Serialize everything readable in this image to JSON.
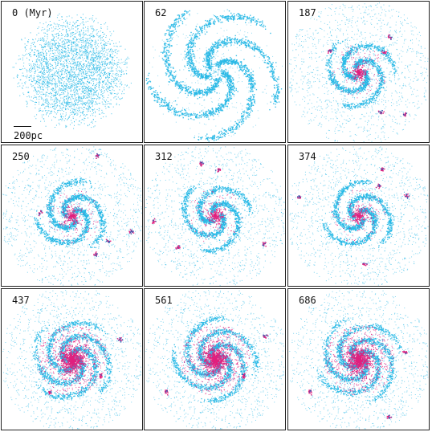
{
  "figure": {
    "panels": [
      {
        "label": "0 (Myr)",
        "stage": "smooth"
      },
      {
        "label": "62",
        "stage": "spiral-clumpy"
      },
      {
        "label": "187",
        "stage": "spiral-clumps"
      },
      {
        "label": "250",
        "stage": "spiral-clumps"
      },
      {
        "label": "312",
        "stage": "spiral-clumps"
      },
      {
        "label": "374",
        "stage": "spiral-clumps"
      },
      {
        "label": "437",
        "stage": "spiral-core"
      },
      {
        "label": "561",
        "stage": "spiral-core"
      },
      {
        "label": "686",
        "stage": "spiral-core"
      }
    ],
    "scalebar_label": "200pc",
    "colors": {
      "gas": "#27b8e6",
      "stars": "#e0207e",
      "frame": "#222222",
      "text": "#111111"
    }
  }
}
